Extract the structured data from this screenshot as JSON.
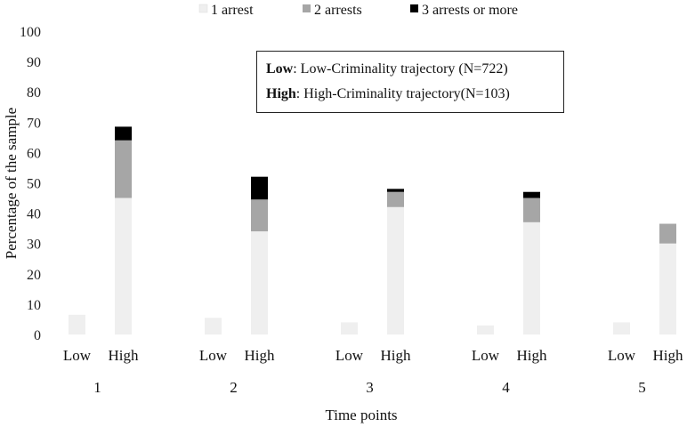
{
  "chart_data": {
    "type": "bar",
    "stacked": true,
    "title": "",
    "xlabel": "Time points",
    "ylabel": "Percentage of the sample",
    "ylim": [
      0,
      100
    ],
    "yticks": [
      0,
      10,
      20,
      30,
      40,
      50,
      60,
      70,
      80,
      90,
      100
    ],
    "time_points": [
      "1",
      "2",
      "3",
      "4",
      "5"
    ],
    "groups": [
      "Low",
      "High"
    ],
    "legend_position": "top",
    "series": [
      {
        "name": "1 arrest",
        "color": "#efefef",
        "values": {
          "Low": [
            6.5,
            5.5,
            4,
            3,
            4
          ],
          "High": [
            45,
            34,
            42,
            37,
            30
          ]
        }
      },
      {
        "name": "2 arrests",
        "color": "#a6a6a6",
        "values": {
          "Low": [
            0,
            0,
            0,
            0,
            0
          ],
          "High": [
            19,
            10.5,
            5,
            8,
            6.5
          ]
        }
      },
      {
        "name": "3 arrests or more",
        "color": "#000000",
        "values": {
          "Low": [
            0,
            0,
            0,
            0,
            0
          ],
          "High": [
            4.5,
            7.5,
            1,
            2,
            0
          ]
        }
      }
    ],
    "annotation": {
      "low_key": "Low",
      "low_text": ": Low-Criminality trajectory (N=722)",
      "high_key": "High",
      "high_text": ": High-Criminality trajectory(N=103)"
    }
  }
}
